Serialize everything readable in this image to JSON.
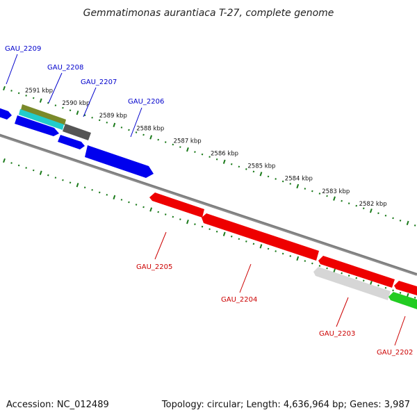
{
  "title": "Gemmatimonas aurantiaca T-27, complete genome",
  "footer": {
    "accession": "Accession: NC_012489",
    "summary": "Topology: circular; Length: 4,636,964 bp; Genes: 3,987"
  },
  "colors": {
    "forward_label": "#0000cc",
    "reverse_label": "#cc0000",
    "tick": "#1a7a1a",
    "backbone": "#7f7f7f"
  },
  "scale_labels": [
    "2591 kbp",
    "2590 kbp",
    "2589 kbp",
    "2588 kbp",
    "2587 kbp",
    "2586 kbp",
    "2585 kbp",
    "2584 kbp",
    "2583 kbp",
    "2582 kbp"
  ],
  "forward_genes": [
    {
      "label": "GAU_2209",
      "color": "#0000ee"
    },
    {
      "label": "GAU_2208",
      "color": "#0000ee"
    },
    {
      "label": "GAU_2207",
      "color": "#0000ee"
    },
    {
      "label": "GAU_2206",
      "color": "#0000ee"
    }
  ],
  "reverse_genes": [
    {
      "label": "GAU_2205",
      "color": "#ee0000"
    },
    {
      "label": "GAU_2204",
      "color": "#ee0000"
    },
    {
      "label": "GAU_2203",
      "color": "#d9d9d9"
    },
    {
      "label": "GAU_2202",
      "color": "#22cc22"
    }
  ],
  "feature_tracks": [
    {
      "color": "#7a8a2a"
    },
    {
      "color": "#22cccc"
    },
    {
      "color": "#555555"
    }
  ]
}
